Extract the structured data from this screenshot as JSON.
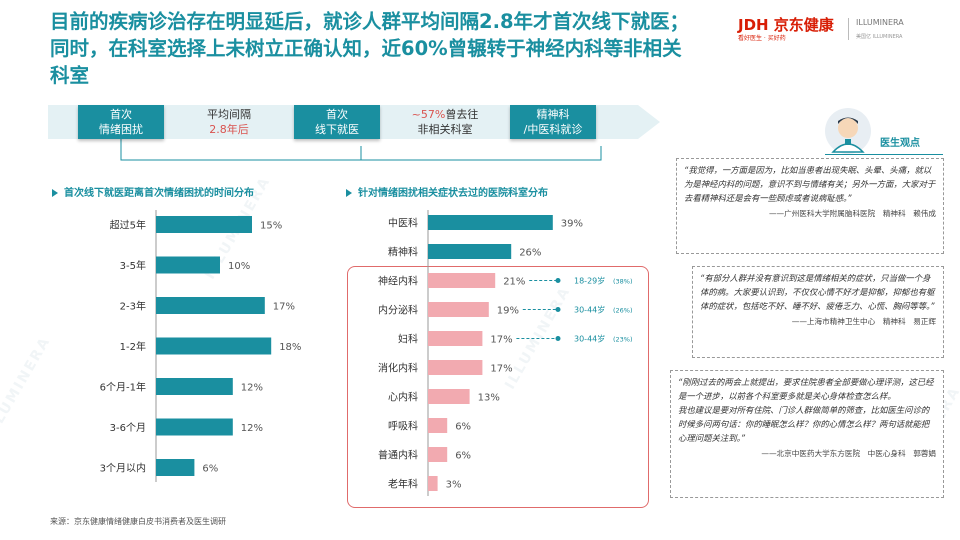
{
  "title": "目前的疾病诊治存在明显延后，就诊人群平均间隔2.8年才首次线下就医；同时，在科室选择上未树立正确认知，近60%曾辗转于神经内科等非相关科室",
  "logo": {
    "jd_text": "JDH 京东健康",
    "jd_sub": "看好医生 · 买好药",
    "illuminera_text": "ILLUMINERA",
    "illuminera_sub": "美国亿 ILLUMINERA"
  },
  "flow": {
    "step1": "首次\n情绪困扰",
    "gap1_top": "平均间隔",
    "gap1_value": "2.8年后",
    "step2": "首次\n线下就医",
    "gap2_value": "~57%",
    "gap2_rest": "曾去往",
    "gap2_bottom": "非相关科室",
    "step3": "精神科\n/中医科就诊"
  },
  "left_chart_title": "首次线下就医距离首次情绪困扰的时间分布",
  "right_chart_title": "针对情绪困扰相关症状去过的医院科室分布",
  "colors": {
    "teal": "#1a8fa0",
    "pink": "#f2aab0",
    "red": "#e06b6b"
  },
  "chart_data": [
    {
      "type": "bar",
      "orientation": "horizontal",
      "title": "首次线下就医距离首次情绪困扰的时间分布",
      "categories": [
        "超过5年",
        "3-5年",
        "2-3年",
        "1-2年",
        "6个月-1年",
        "3-6个月",
        "3个月以内"
      ],
      "values": [
        15,
        10,
        17,
        18,
        12,
        12,
        6
      ],
      "labels": [
        "15%",
        "10%",
        "17%",
        "18%",
        "12%",
        "12%",
        "6%"
      ],
      "xlim": [
        0,
        20
      ]
    },
    {
      "type": "bar",
      "orientation": "horizontal",
      "title": "针对情绪困扰相关症状去过的医院科室分布",
      "categories": [
        "中医科",
        "精神科",
        "神经内科",
        "内分泌科",
        "妇科",
        "消化内科",
        "心内科",
        "呼吸科",
        "普通内科",
        "老年科"
      ],
      "values": [
        39,
        26,
        21,
        19,
        17,
        17,
        13,
        6,
        6,
        3
      ],
      "labels": [
        "39%",
        "26%",
        "21%",
        "19%",
        "17%",
        "17%",
        "13%",
        "6%",
        "6%",
        "3%"
      ],
      "highlight_from_index": 2,
      "xlim": [
        0,
        45
      ],
      "annotations": [
        {
          "category": "神经内科",
          "age": "18-29岁",
          "share": "(38%)"
        },
        {
          "category": "内分泌科",
          "age": "30-44岁",
          "share": "(26%)"
        },
        {
          "category": "妇科",
          "age": "30-44岁",
          "share": "(23%)"
        }
      ]
    }
  ],
  "doctor": {
    "title": "医生观点",
    "quotes": [
      {
        "text": "“我觉得，一方面是因为，比如当患者出现失眠、头晕、头痛，就以为是神经内科的问题，意识不到与情绪有关；另外一方面，大家对于去看精神科还是会有一些顾虑或者说病耻感。”",
        "source": "——广州医科大学附属脑科医院　精神科　赖伟成"
      },
      {
        "text": "“有部分人群并没有意识到这是情绪相关的症状，只当做一个身体的病。大家要认识到，不仅仅心情不好才是抑郁，抑郁也有躯体的症状，包括吃不好、睡不好、疲倦乏力、心慌、胸闷等等。”",
        "source": "——上海市精神卫生中心　精神科　易正辉"
      },
      {
        "text": "“刚刚过去的两会上就提出，要求住院患者全部要做心理评测，这已经是一个进步，以前各个科室要多就是关心身体检查怎么样。\n我也建议是要对所有住院、门诊人群做简单的筛查，比如医生问诊的时候多问两句话：你的睡眠怎么样？你的心情怎么样？两句话就能把心理问题关注到。”",
        "source": "——北京中医药大学东方医院　中医心身科　郭蓉娟"
      }
    ]
  },
  "footer": "来源：京东健康情绪健康白皮书消费者及医生调研",
  "watermark": "ILLUMINERA"
}
